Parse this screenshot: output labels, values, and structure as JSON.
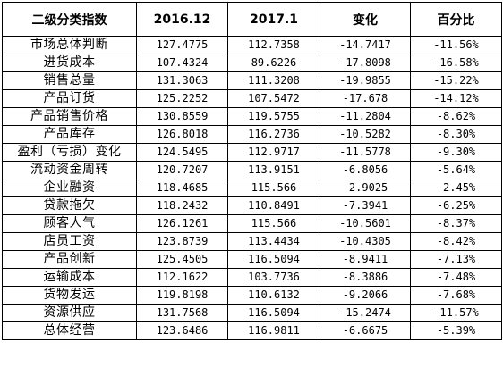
{
  "table": {
    "headers": [
      "二级分类指数",
      "2016.12",
      "2017.1",
      "变化",
      "百分比"
    ],
    "rows": [
      [
        "市场总体判断",
        "127.4775",
        "112.7358",
        "-14.7417",
        "-11.56%"
      ],
      [
        "进货成本",
        "107.4324",
        "89.6226",
        "-17.8098",
        "-16.58%"
      ],
      [
        "销售总量",
        "131.3063",
        "111.3208",
        "-19.9855",
        "-15.22%"
      ],
      [
        "产品订货",
        "125.2252",
        "107.5472",
        "-17.678",
        "-14.12%"
      ],
      [
        "产品销售价格",
        "130.8559",
        "119.5755",
        "-11.2804",
        "-8.62%"
      ],
      [
        "产品库存",
        "126.8018",
        "116.2736",
        "-10.5282",
        "-8.30%"
      ],
      [
        "盈利（亏损）变化",
        "124.5495",
        "112.9717",
        "-11.5778",
        "-9.30%"
      ],
      [
        "流动资金周转",
        "120.7207",
        "113.9151",
        "-6.8056",
        "-5.64%"
      ],
      [
        "企业融资",
        "118.4685",
        "115.566",
        "-2.9025",
        "-2.45%"
      ],
      [
        "贷款拖欠",
        "118.2432",
        "110.8491",
        "-7.3941",
        "-6.25%"
      ],
      [
        "顾客人气",
        "126.1261",
        "115.566",
        "-10.5601",
        "-8.37%"
      ],
      [
        "店员工资",
        "123.8739",
        "113.4434",
        "-10.4305",
        "-8.42%"
      ],
      [
        "产品创新",
        "125.4505",
        "116.5094",
        "-8.9411",
        "-7.13%"
      ],
      [
        "运输成本",
        "112.1622",
        "103.7736",
        "-8.3886",
        "-7.48%"
      ],
      [
        "货物发运",
        "119.8198",
        "110.6132",
        "-9.2066",
        "-7.68%"
      ],
      [
        "资源供应",
        "131.7568",
        "116.5094",
        "-15.2474",
        "-11.57%"
      ],
      [
        "总体经营",
        "123.6486",
        "116.9811",
        "-6.6675",
        "-5.39%"
      ]
    ]
  }
}
